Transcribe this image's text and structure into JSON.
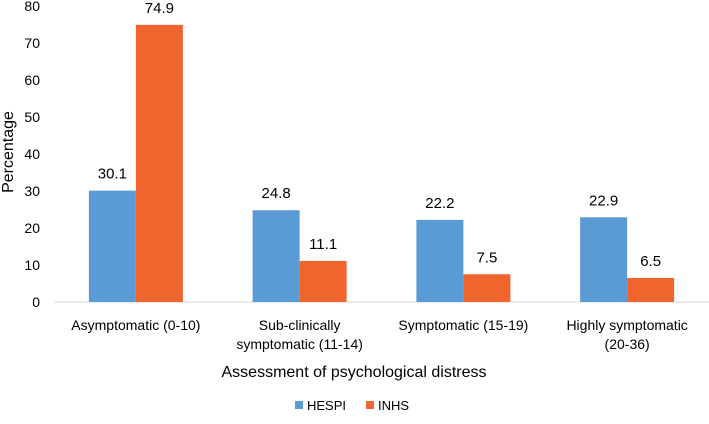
{
  "chart_data": {
    "type": "bar",
    "title": "",
    "xlabel": "Assessment of psychological distress",
    "ylabel": "Percentage",
    "ylim": [
      0,
      80
    ],
    "yticks": [
      0,
      10,
      20,
      30,
      40,
      50,
      60,
      70,
      80
    ],
    "categories": [
      [
        "Asymptomatic (0-10)"
      ],
      [
        "Sub-clinically",
        "symptomatic (11-14)"
      ],
      [
        "Symptomatic (15-19)"
      ],
      [
        "Highly symptomatic",
        "(20-36)"
      ]
    ],
    "series": [
      {
        "name": "HESPI",
        "color": "#5B9BD5",
        "values": [
          30.1,
          24.8,
          22.2,
          22.9
        ]
      },
      {
        "name": "INHS",
        "color": "#F0642D",
        "values": [
          74.9,
          11.1,
          7.5,
          6.5
        ]
      }
    ],
    "grid": false,
    "legend_position": "bottom-center"
  }
}
